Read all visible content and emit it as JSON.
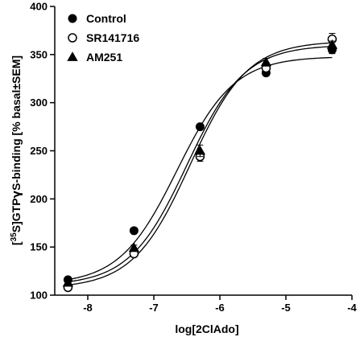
{
  "chart_data": {
    "type": "scatter",
    "title": "",
    "xlabel": "log[2ClAdo]",
    "ylabel_parts": {
      "open": "[",
      "superscript": "35",
      "middle": "S]GTP",
      "gamma": "γ",
      "rest": "S-binding [% basal±SEM]"
    },
    "xlim": [
      -8.5,
      -4
    ],
    "ylim": [
      100,
      400
    ],
    "xticks": [
      "-8",
      "-7",
      "-6",
      "-5",
      "-4"
    ],
    "yticks": [
      "100",
      "150",
      "200",
      "250",
      "300",
      "350",
      "400"
    ],
    "legend_position": "top-left",
    "series": [
      {
        "name": "Control",
        "marker": "filled-circle",
        "x": [
          -8.3,
          -7.3,
          -6.3,
          -5.3,
          -4.3
        ],
        "y": [
          116,
          167,
          275,
          331,
          355
        ],
        "err": [
          2,
          2,
          2,
          3,
          4
        ],
        "fit": {
          "bottom": 111,
          "top": 348,
          "logEC50": -6.65,
          "hill": 1.0
        }
      },
      {
        "name": "SR141716",
        "marker": "open-circle",
        "x": [
          -8.3,
          -7.3,
          -6.3,
          -5.3,
          -4.3
        ],
        "y": [
          108,
          143,
          244,
          336,
          366
        ],
        "err": [
          2,
          3,
          5,
          4,
          6
        ],
        "fit": {
          "bottom": 107,
          "top": 364,
          "logEC50": -6.45,
          "hill": 1.0
        }
      },
      {
        "name": "AM251",
        "marker": "filled-triangle",
        "x": [
          -8.3,
          -7.3,
          -6.3,
          -5.3,
          -4.3
        ],
        "y": [
          113,
          149,
          250,
          342,
          360
        ],
        "err": [
          2,
          3,
          6,
          4,
          4
        ],
        "fit": {
          "bottom": 110,
          "top": 360,
          "logEC50": -6.5,
          "hill": 1.0
        }
      }
    ]
  }
}
